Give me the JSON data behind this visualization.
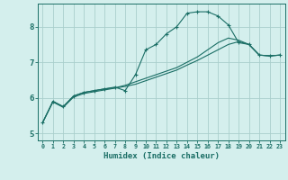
{
  "xlabel": "Humidex (Indice chaleur)",
  "background_color": "#d4efed",
  "grid_color": "#aacfcc",
  "line_color": "#1a6e65",
  "xlim": [
    -0.5,
    23.5
  ],
  "ylim": [
    4.8,
    8.65
  ],
  "xtick_labels": [
    "0",
    "1",
    "2",
    "3",
    "4",
    "5",
    "6",
    "7",
    "8",
    "9",
    "10",
    "11",
    "12",
    "13",
    "14",
    "15",
    "16",
    "17",
    "18",
    "19",
    "20",
    "21",
    "22",
    "23"
  ],
  "yticks": [
    5,
    6,
    7,
    8
  ],
  "series": [
    {
      "x": [
        0,
        1,
        2,
        3,
        4,
        5,
        6,
        7,
        8,
        9,
        10,
        11,
        12,
        13,
        14,
        15,
        16,
        17,
        18,
        19,
        20,
        21,
        22,
        23
      ],
      "y": [
        5.3,
        5.9,
        5.75,
        6.05,
        6.15,
        6.2,
        6.25,
        6.3,
        6.2,
        6.65,
        7.35,
        7.5,
        7.8,
        8.0,
        8.38,
        8.42,
        8.42,
        8.3,
        8.05,
        7.55,
        7.5,
        7.2,
        7.18,
        7.2
      ],
      "marker": true
    },
    {
      "x": [
        0,
        1,
        2,
        3,
        4,
        5,
        6,
        7,
        8,
        9,
        10,
        11,
        12,
        13,
        14,
        15,
        16,
        17,
        18,
        19,
        20,
        21,
        22,
        23
      ],
      "y": [
        5.3,
        5.9,
        5.75,
        6.05,
        6.15,
        6.2,
        6.25,
        6.28,
        6.35,
        6.45,
        6.55,
        6.65,
        6.75,
        6.85,
        7.0,
        7.15,
        7.35,
        7.55,
        7.68,
        7.62,
        7.5,
        7.2,
        7.18,
        7.2
      ],
      "marker": false
    },
    {
      "x": [
        0,
        1,
        2,
        3,
        4,
        5,
        6,
        7,
        8,
        9,
        10,
        11,
        12,
        13,
        14,
        15,
        16,
        17,
        18,
        19,
        20,
        21,
        22,
        23
      ],
      "y": [
        5.3,
        5.88,
        5.73,
        6.02,
        6.12,
        6.17,
        6.22,
        6.27,
        6.32,
        6.38,
        6.48,
        6.58,
        6.68,
        6.78,
        6.92,
        7.05,
        7.2,
        7.35,
        7.5,
        7.58,
        7.5,
        7.2,
        7.18,
        7.2
      ],
      "marker": false
    }
  ]
}
